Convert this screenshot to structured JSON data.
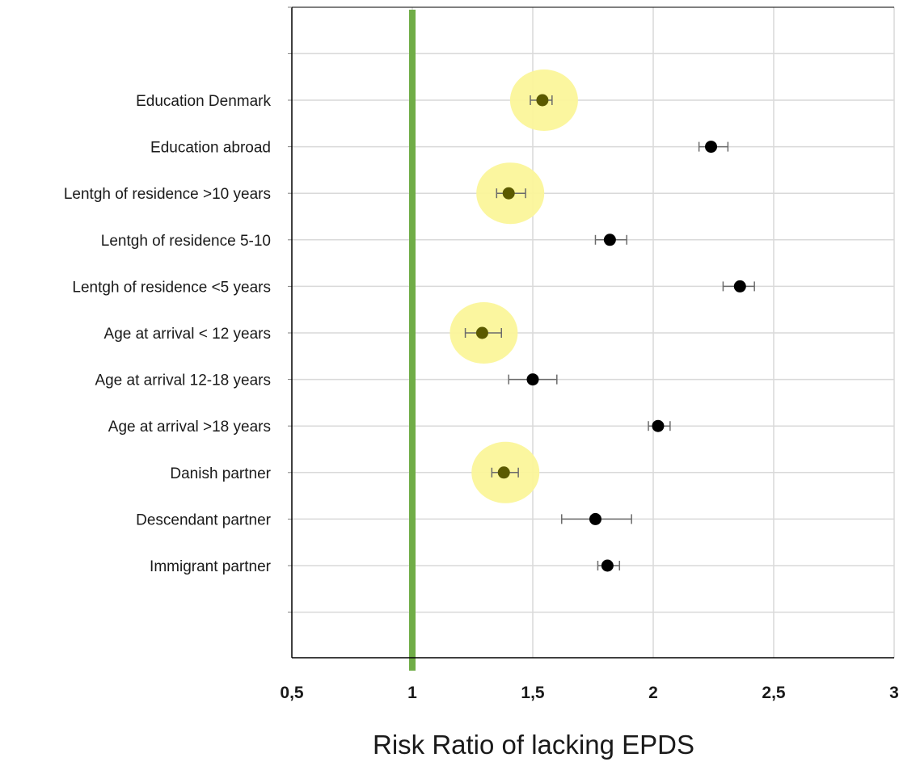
{
  "chart_data": {
    "type": "scatter",
    "title": "",
    "xlabel": "Risk Ratio of lacking EPDS",
    "ylabel": "",
    "xlim": [
      0.5,
      3
    ],
    "x_ticks": [
      0.5,
      1,
      1.5,
      2,
      2.5,
      3
    ],
    "x_tick_labels": [
      "0,5",
      "1",
      "1,5",
      "2",
      "2,5",
      "3"
    ],
    "grid": true,
    "reference_line": {
      "x": 1,
      "color": "#70ad47"
    },
    "categories": [
      "Education Denmark",
      "Education abroad",
      "Lentgh of residence >10 years",
      "Lentgh of residence 5-10",
      "Lentgh of residence <5 years",
      "Age at arrival < 12 years",
      "Age at arrival 12-18 years",
      "Age at arrival >18 years",
      "Danish partner",
      "Descendant partner",
      "Immigrant partner"
    ],
    "series": [
      {
        "values": [
          1.54,
          2.24,
          1.4,
          1.82,
          2.36,
          1.29,
          1.5,
          2.02,
          1.38,
          1.76,
          1.81
        ],
        "ci_low": [
          1.49,
          2.19,
          1.35,
          1.76,
          2.29,
          1.22,
          1.4,
          1.98,
          1.33,
          1.62,
          1.77
        ],
        "ci_high": [
          1.58,
          2.31,
          1.47,
          1.89,
          2.42,
          1.37,
          1.6,
          2.07,
          1.44,
          1.91,
          1.86
        ],
        "highlighted": [
          true,
          false,
          true,
          false,
          false,
          true,
          false,
          false,
          true,
          false,
          false
        ]
      }
    ],
    "colors": {
      "point": "#000000",
      "highlight_point": "#5b5a00",
      "highlight_halo": "#fbf59a",
      "grid": "#d9d9d9",
      "axis": "#000000",
      "error_bar": "#6b6b6b"
    }
  }
}
